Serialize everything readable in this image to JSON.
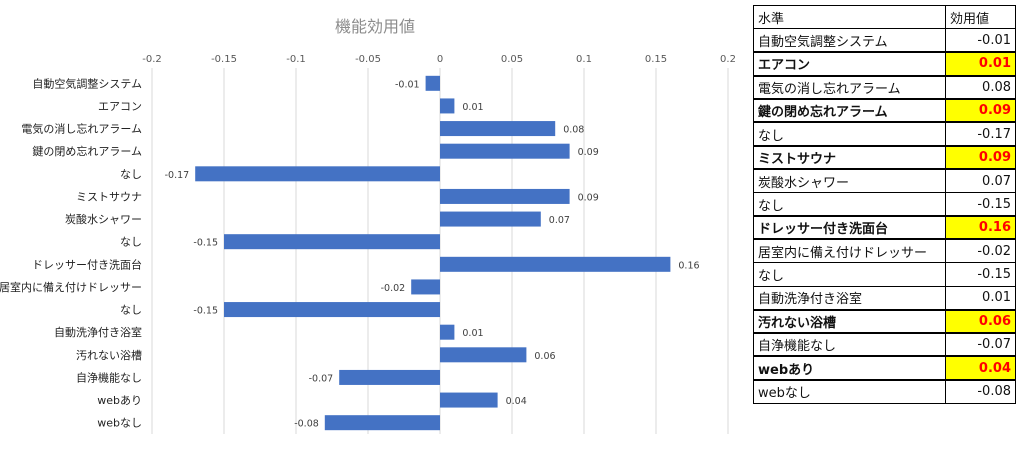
{
  "chart_data": {
    "type": "bar",
    "orientation": "horizontal",
    "title": "機能効用値",
    "xlim": [
      -0.2,
      0.2
    ],
    "x_ticks": [
      "-0.2",
      "-0.15",
      "-0.1",
      "-0.05",
      "0",
      "0.05",
      "0.1",
      "0.15",
      "0.2"
    ],
    "grid": "vertical",
    "color": "#4472c4",
    "categories": [
      "自動空気調整システム",
      "エアコン",
      "電気の消し忘れアラーム",
      "鍵の閉め忘れアラーム",
      "なし",
      "ミストサウナ",
      "炭酸水シャワー",
      "なし",
      "ドレッサー付き洗面台",
      "居室内に備え付けドレッサー",
      "なし",
      "自動洗浄付き浴室",
      "汚れない浴槽",
      "自浄機能なし",
      "webあり",
      "webなし"
    ],
    "values": [
      -0.01,
      0.01,
      0.08,
      0.09,
      -0.17,
      0.09,
      0.07,
      -0.15,
      0.16,
      -0.02,
      -0.15,
      0.01,
      0.06,
      -0.07,
      0.04,
      -0.08
    ],
    "value_labels": [
      "-0.01",
      "0.01",
      "0.08",
      "0.09",
      "-0.17",
      "0.09",
      "0.07",
      "-0.15",
      "0.16",
      "-0.02",
      "-0.15",
      "0.01",
      "0.06",
      "-0.07",
      "0.04",
      "-0.08"
    ]
  },
  "table": {
    "headers": [
      "水準",
      "効用値"
    ],
    "rows": [
      {
        "level": "自動空気調整システム",
        "value": "-0.01",
        "highlight": false
      },
      {
        "level": "エアコン",
        "value": "0.01",
        "highlight": true
      },
      {
        "level": "電気の消し忘れアラーム",
        "value": "0.08",
        "highlight": false
      },
      {
        "level": "鍵の閉め忘れアラーム",
        "value": "0.09",
        "highlight": true
      },
      {
        "level": "なし",
        "value": "-0.17",
        "highlight": false
      },
      {
        "level": "ミストサウナ",
        "value": "0.09",
        "highlight": true
      },
      {
        "level": "炭酸水シャワー",
        "value": "0.07",
        "highlight": false
      },
      {
        "level": "なし",
        "value": "-0.15",
        "highlight": false
      },
      {
        "level": "ドレッサー付き洗面台",
        "value": "0.16",
        "highlight": true
      },
      {
        "level": "居室内に備え付けドレッサー",
        "value": "-0.02",
        "highlight": false
      },
      {
        "level": "なし",
        "value": "-0.15",
        "highlight": false
      },
      {
        "level": "自動洗浄付き浴室",
        "value": "0.01",
        "highlight": false
      },
      {
        "level": "汚れない浴槽",
        "value": "0.06",
        "highlight": true
      },
      {
        "level": "自浄機能なし",
        "value": "-0.07",
        "highlight": false
      },
      {
        "level": "webあり",
        "value": "0.04",
        "highlight": true
      },
      {
        "level": "webなし",
        "value": "-0.08",
        "highlight": false
      }
    ],
    "highlight_bg": "#ffff00",
    "highlight_text": "#ff0000"
  }
}
